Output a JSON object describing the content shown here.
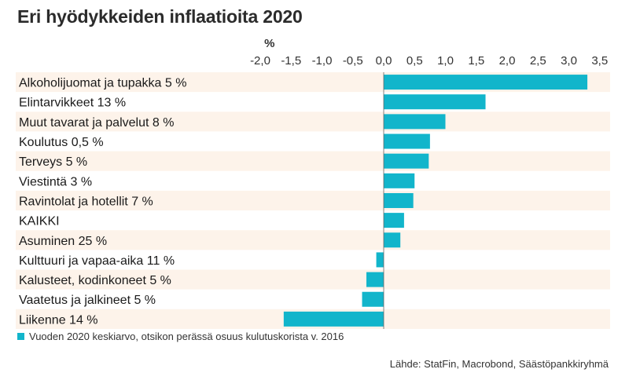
{
  "title": "Eri hyödykkeiden inflaatioita 2020",
  "source": "Lähde: StatFin, Macrobond, Säästöpankkiryhmä",
  "colors": {
    "bar": "#12b5cb",
    "band": "#fdf3ea",
    "axis": "#666666"
  },
  "chart_data": {
    "type": "bar",
    "orientation": "horizontal",
    "title": "Eri hyödykkeiden inflaatioita 2020",
    "unit_label": "%",
    "xlim": [
      -2.0,
      3.5
    ],
    "ticks": [
      -2.0,
      -1.5,
      -1.0,
      -0.5,
      0.0,
      0.5,
      1.0,
      1.5,
      2.0,
      2.5,
      3.0,
      3.5
    ],
    "tick_labels": [
      "-2,0",
      "-1,5",
      "-1,0",
      "-0,5",
      "0,0",
      "0,5",
      "1,0",
      "1,5",
      "2,0",
      "2,5",
      "3,0",
      "3,5"
    ],
    "categories": [
      "Alkoholijuomat ja tupakka 5 %",
      "Elintarvikkeet 13 %",
      "Muut tavarat ja palvelut 8 %",
      "Koulutus 0,5 %",
      "Terveys 5 %",
      "Viestintä 3 %",
      "Ravintolat ja hotellit 7 %",
      "KAIKKI",
      "Asuminen 25 %",
      "Kulttuuri ja vapaa-aika 11 %",
      "Kalusteet, kodinkoneet 5 %",
      "Vaatetus ja jalkineet 5 %",
      "Liikenne 14 %"
    ],
    "series": [
      {
        "name": "Vuoden 2020 keskiarvo, otsikon perässä osuus kulutuskorista v. 2016",
        "values": [
          3.3,
          1.65,
          1.0,
          0.75,
          0.73,
          0.5,
          0.48,
          0.33,
          0.27,
          -0.12,
          -0.28,
          -0.35,
          -1.62
        ]
      }
    ],
    "legend": "bottom-left"
  }
}
